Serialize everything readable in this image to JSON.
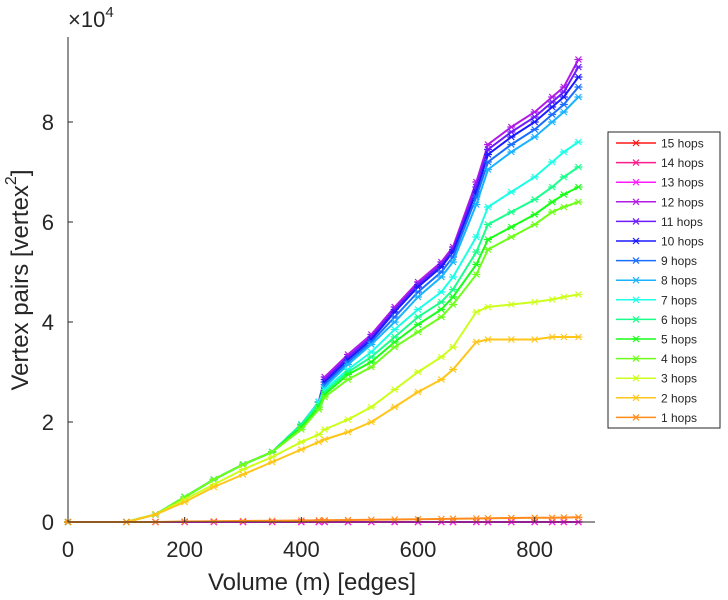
{
  "chart_data": {
    "type": "line",
    "xlabel": "Volume (m) [edges]",
    "ylabel": "Vertex pairs [vertex",
    "ylabel_superscript": "2",
    "ylabel_suffix": "]",
    "y_exponent_label": "×10",
    "y_exponent_power": "4",
    "xlim": [
      0,
      900
    ],
    "ylim": [
      0,
      100000
    ],
    "xticks": [
      0,
      200,
      400,
      600,
      800
    ],
    "xtick_labels": [
      "0",
      "200",
      "400",
      "600",
      "800"
    ],
    "yticks": [
      0,
      20000,
      40000,
      60000,
      80000
    ],
    "ytick_labels": [
      "0",
      "2",
      "4",
      "6",
      "8"
    ],
    "grid": false,
    "legend_position": "right",
    "x": [
      0,
      100,
      150,
      200,
      250,
      300,
      350,
      400,
      430,
      440,
      480,
      520,
      560,
      600,
      640,
      660,
      700,
      720,
      760,
      800,
      830,
      850,
      875
    ],
    "series": [
      {
        "name": "15 hops",
        "color": "#ff1a1a",
        "values": [
          0,
          0,
          0,
          0,
          0,
          0,
          0,
          0,
          0,
          0,
          0,
          0,
          0,
          0,
          0,
          0,
          0,
          0,
          0,
          0,
          0,
          0,
          0
        ]
      },
      {
        "name": "14 hops",
        "color": "#ff1a8c",
        "values": [
          0,
          0,
          0,
          0,
          0,
          0,
          0,
          0,
          0,
          0,
          0,
          0,
          0,
          0,
          0,
          0,
          0,
          0,
          0,
          0,
          0,
          0,
          0
        ]
      },
      {
        "name": "13 hops",
        "color": "#ff1aff",
        "values": [
          0,
          0,
          0,
          0,
          0,
          0,
          0,
          0,
          0,
          0,
          0,
          0,
          0,
          0,
          0,
          0,
          0,
          0,
          0,
          0,
          0,
          0,
          0
        ]
      },
      {
        "name": "12 hops",
        "color": "#b31ae6",
        "values": [
          0,
          0,
          1500,
          5000,
          8500,
          11500,
          14000,
          19500,
          24000,
          29000,
          33500,
          37500,
          43000,
          48000,
          52000,
          55000,
          68000,
          75500,
          79000,
          82000,
          85000,
          87000,
          92500
        ]
      },
      {
        "name": "11 hops",
        "color": "#6e1aff",
        "values": [
          0,
          0,
          1500,
          5000,
          8500,
          11500,
          14000,
          19500,
          24000,
          28500,
          33000,
          37000,
          42500,
          47500,
          51500,
          54500,
          67000,
          74500,
          78000,
          81000,
          84000,
          86000,
          91000
        ]
      },
      {
        "name": "10 hops",
        "color": "#1a1aff",
        "values": [
          0,
          0,
          1500,
          5000,
          8500,
          11500,
          14000,
          19500,
          24000,
          28000,
          32500,
          36500,
          42000,
          47000,
          51000,
          54000,
          66000,
          73500,
          77000,
          80000,
          83000,
          85000,
          89000
        ]
      },
      {
        "name": "9 hops",
        "color": "#1a6eff",
        "values": [
          0,
          0,
          1500,
          5000,
          8500,
          11500,
          14000,
          19500,
          24000,
          27500,
          32000,
          36000,
          41000,
          46000,
          50000,
          53000,
          65000,
          72000,
          75500,
          78500,
          81500,
          83500,
          87000
        ]
      },
      {
        "name": "8 hops",
        "color": "#1ab3ff",
        "values": [
          0,
          0,
          1500,
          5000,
          8500,
          11500,
          14000,
          19500,
          24000,
          27000,
          31500,
          35500,
          40000,
          45000,
          49000,
          52000,
          63500,
          70500,
          74000,
          77000,
          80000,
          82000,
          85000
        ]
      },
      {
        "name": "7 hops",
        "color": "#1affe6",
        "values": [
          0,
          0,
          1500,
          5000,
          8500,
          11500,
          14000,
          19500,
          24000,
          26500,
          30500,
          34000,
          38500,
          42500,
          46000,
          49000,
          57000,
          63000,
          66000,
          69000,
          72000,
          74000,
          76000
        ]
      },
      {
        "name": "6 hops",
        "color": "#1aff8c",
        "values": [
          0,
          0,
          1500,
          5000,
          8500,
          11500,
          14000,
          19500,
          23500,
          26000,
          30000,
          33000,
          37000,
          41000,
          44000,
          46500,
          54000,
          59500,
          62000,
          64500,
          67000,
          69000,
          71000
        ]
      },
      {
        "name": "5 hops",
        "color": "#1aff1a",
        "values": [
          0,
          0,
          1500,
          5000,
          8500,
          11500,
          14000,
          19000,
          23000,
          25500,
          29500,
          32000,
          36000,
          39500,
          42500,
          45000,
          51500,
          56500,
          59000,
          61500,
          64000,
          65500,
          67000
        ]
      },
      {
        "name": "4 hops",
        "color": "#6eff1a",
        "values": [
          0,
          0,
          1500,
          5000,
          8500,
          11500,
          14000,
          18500,
          22500,
          25000,
          28500,
          31000,
          35000,
          38000,
          41000,
          43500,
          49500,
          54500,
          57000,
          59500,
          62000,
          63000,
          64000
        ]
      },
      {
        "name": "3 hops",
        "color": "#ccff1a",
        "values": [
          0,
          0,
          1500,
          4500,
          7500,
          10500,
          13000,
          16000,
          17500,
          18500,
          20500,
          23000,
          26500,
          30000,
          33000,
          35000,
          42000,
          43000,
          43500,
          44000,
          44500,
          45000,
          45500
        ]
      },
      {
        "name": "2 hops",
        "color": "#ffc61a",
        "values": [
          0,
          0,
          1500,
          4000,
          7000,
          9500,
          12000,
          14500,
          16000,
          16500,
          18000,
          20000,
          23000,
          26000,
          28500,
          30500,
          36000,
          36500,
          36500,
          36500,
          37000,
          37000,
          37000
        ]
      },
      {
        "name": "1 hops",
        "color": "#ff8c1a",
        "values": [
          0,
          0,
          0,
          100,
          150,
          200,
          250,
          300,
          350,
          350,
          400,
          450,
          500,
          550,
          600,
          650,
          700,
          750,
          800,
          850,
          850,
          900,
          950
        ]
      }
    ]
  }
}
